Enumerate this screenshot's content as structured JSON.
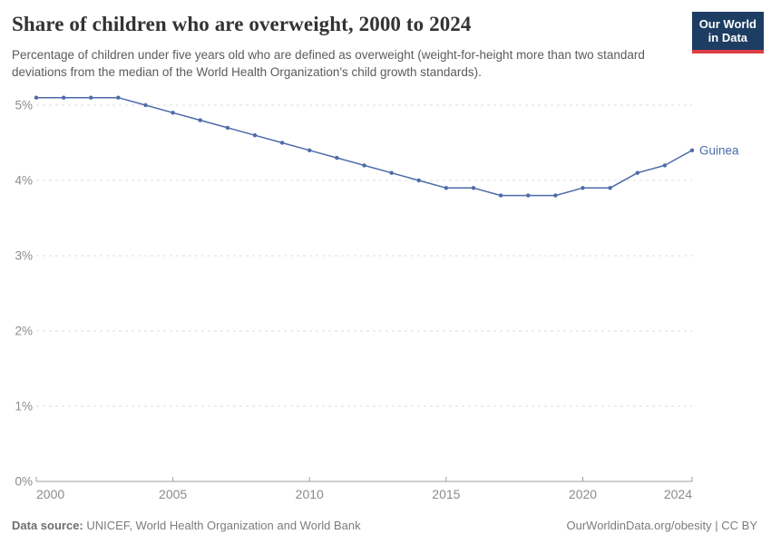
{
  "header": {
    "title": "Share of children who are overweight, 2000 to 2024",
    "subtitle": "Percentage of children under five years old who are defined as overweight (weight-for-height more than two standard deviations from the median of the World Health Organization's child growth standards).",
    "logo": {
      "line1": "Our World",
      "line2": "in Data",
      "bg_color": "#1d3d63",
      "bar_color": "#dc3e43"
    }
  },
  "chart_data": {
    "type": "line",
    "title": "Share of children who are overweight, 2000 to 2024",
    "xlabel": "",
    "ylabel": "",
    "xlim": [
      2000,
      2024
    ],
    "ylim": [
      0,
      5.2
    ],
    "grid": "horizontal-dashed",
    "legend_position": "end-of-line-label",
    "x_ticks": [
      {
        "value": 2000,
        "label": "2000"
      },
      {
        "value": 2005,
        "label": "2005"
      },
      {
        "value": 2010,
        "label": "2010"
      },
      {
        "value": 2015,
        "label": "2015"
      },
      {
        "value": 2020,
        "label": "2020"
      },
      {
        "value": 2024,
        "label": "2024"
      }
    ],
    "y_ticks": [
      {
        "value": 0,
        "label": "0%"
      },
      {
        "value": 1,
        "label": "1%"
      },
      {
        "value": 2,
        "label": "2%"
      },
      {
        "value": 3,
        "label": "3%"
      },
      {
        "value": 4,
        "label": "4%"
      },
      {
        "value": 5,
        "label": "5%"
      }
    ],
    "series": [
      {
        "name": "Guinea",
        "color": "#4c6ba9",
        "x": [
          2000,
          2001,
          2002,
          2003,
          2004,
          2005,
          2006,
          2007,
          2008,
          2009,
          2010,
          2011,
          2012,
          2013,
          2014,
          2015,
          2016,
          2017,
          2018,
          2019,
          2020,
          2021,
          2022,
          2023,
          2024
        ],
        "values": [
          5.1,
          5.1,
          5.1,
          5.1,
          5.0,
          4.9,
          4.8,
          4.7,
          4.6,
          4.5,
          4.4,
          4.3,
          4.2,
          4.1,
          4.0,
          3.9,
          3.9,
          3.8,
          3.8,
          3.8,
          3.9,
          3.9,
          4.1,
          4.2,
          4.4
        ]
      }
    ],
    "style": {
      "grid_color": "#dcdcdc",
      "axis_color": "#9e9e9e",
      "tick_label_color": "#8b8b8b"
    }
  },
  "footer": {
    "source_label": "Data source:",
    "source_text": "UNICEF, World Health Organization and World Bank",
    "attribution": "OurWorldinData.org/obesity | CC BY"
  }
}
